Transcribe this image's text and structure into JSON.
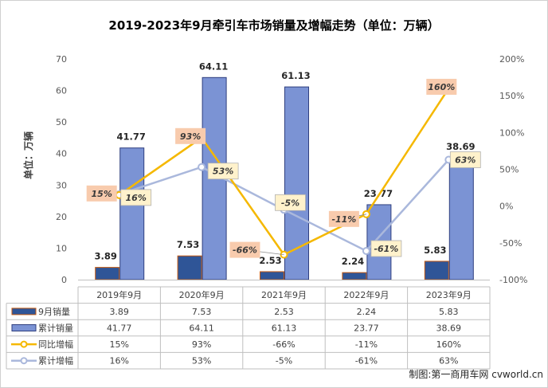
{
  "chart_data": {
    "type": "bar",
    "title": "2019-2023年9月牵引车市场销量及增幅走势（单位：万辆）",
    "ylabel": "单位：万辆",
    "ylim": [
      0,
      70
    ],
    "y_ticks": [
      "0",
      "10",
      "20",
      "30",
      "40",
      "50",
      "60",
      "70"
    ],
    "y2lim": [
      -100,
      200
    ],
    "y2_ticks": [
      "-100%",
      "-50%",
      "0%",
      "50%",
      "100%",
      "150%",
      "200%"
    ],
    "categories": [
      "2019年9月",
      "2020年9月",
      "2021年9月",
      "2022年9月",
      "2023年9月"
    ],
    "series": [
      {
        "name": "9月销量",
        "type": "bar",
        "axis": "left",
        "color": "#2f5597",
        "values": [
          3.89,
          7.53,
          2.53,
          2.24,
          5.83
        ],
        "labels": [
          "3.89",
          "7.53",
          "2.53",
          "2.24",
          "5.83"
        ]
      },
      {
        "name": "累计销量",
        "type": "bar",
        "axis": "left",
        "color": "#7b93d4",
        "values": [
          41.77,
          64.11,
          61.13,
          23.77,
          38.69
        ],
        "labels": [
          "41.77",
          "64.11",
          "61.13",
          "23.77",
          "38.69"
        ]
      },
      {
        "name": "同比增幅",
        "type": "line",
        "axis": "right",
        "color": "#f5b800",
        "values": [
          15,
          93,
          -66,
          -11,
          160
        ],
        "labels": [
          "15%",
          "93%",
          "-66%",
          "-11%",
          "160%"
        ]
      },
      {
        "name": "累计增幅",
        "type": "line",
        "axis": "right",
        "color": "#aab8dc",
        "values": [
          16,
          53,
          -5,
          -61,
          63
        ],
        "labels": [
          "16%",
          "53%",
          "-5%",
          "-61%",
          "63%"
        ]
      }
    ],
    "grid": false,
    "legend": "table-below"
  },
  "credit": "制图:第一商用车网 cvworld.cn"
}
